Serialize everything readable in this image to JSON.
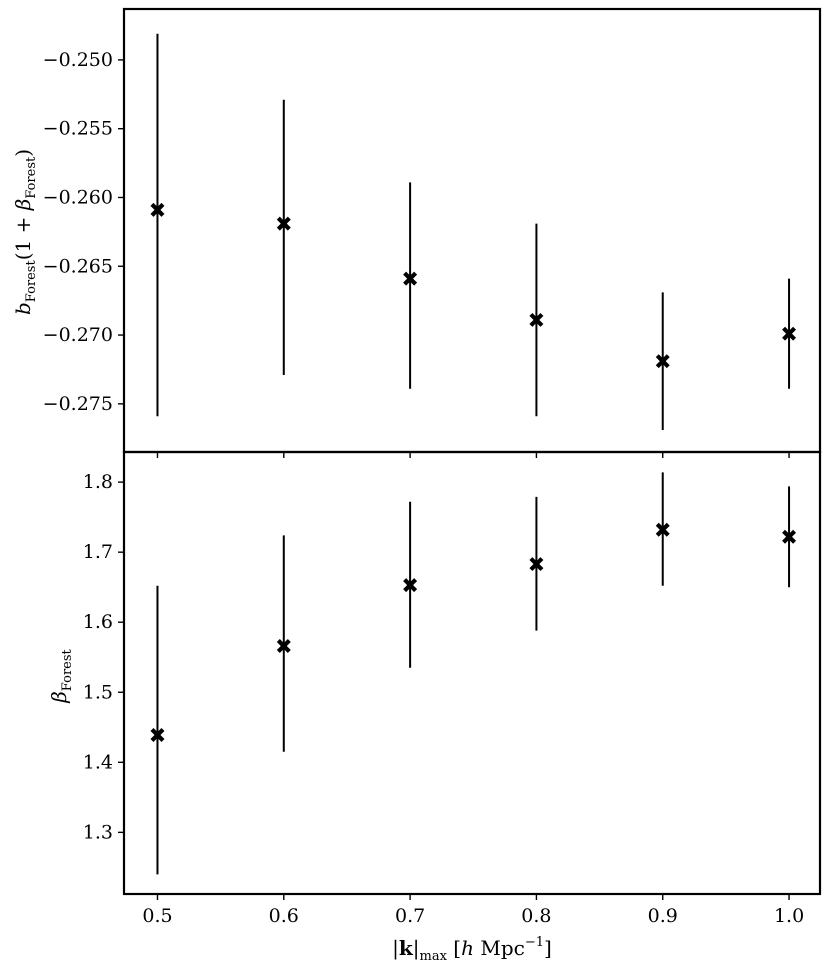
{
  "chart_data": [
    {
      "type": "scatter",
      "panel": "top",
      "ylabel": "b_Forest(1 + β_Forest)",
      "ylabel_parts": {
        "main": "b",
        "sub": "Forest",
        "open": "(1 + ",
        "beta": "β",
        "sub2": "Forest",
        "close": ")"
      },
      "ylim": [
        -0.2785,
        -0.2463
      ],
      "yticks": [
        -0.25,
        -0.255,
        -0.26,
        -0.265,
        -0.27,
        -0.275
      ],
      "ytick_labels": [
        "−0.250",
        "−0.255",
        "−0.260",
        "−0.265",
        "−0.270",
        "−0.275"
      ],
      "x": [
        0.5,
        0.6,
        0.7,
        0.8,
        0.9,
        1.0
      ],
      "y": [
        -0.2609,
        -0.2619,
        -0.2659,
        -0.2689,
        -0.2719,
        -0.2699
      ],
      "yerr_low": [
        -0.2759,
        -0.2729,
        -0.2739,
        -0.2759,
        -0.2769,
        -0.2739
      ],
      "yerr_high": [
        -0.2481,
        -0.2529,
        -0.2589,
        -0.2619,
        -0.2669,
        -0.2659
      ],
      "marker": "X",
      "color": "#000000"
    },
    {
      "type": "scatter",
      "panel": "bottom",
      "ylabel": "β_Forest",
      "ylabel_parts": {
        "beta": "β",
        "sub": "Forest"
      },
      "ylim": [
        1.212,
        1.843
      ],
      "yticks": [
        1.3,
        1.4,
        1.5,
        1.6,
        1.7,
        1.8
      ],
      "ytick_labels": [
        "1.3",
        "1.4",
        "1.5",
        "1.6",
        "1.7",
        "1.8"
      ],
      "x": [
        0.5,
        0.6,
        0.7,
        0.8,
        0.9,
        1.0
      ],
      "y": [
        1.439,
        1.566,
        1.653,
        1.683,
        1.732,
        1.722
      ],
      "yerr_low": [
        1.24,
        1.415,
        1.535,
        1.588,
        1.652,
        1.65
      ],
      "yerr_high": [
        1.652,
        1.724,
        1.772,
        1.779,
        1.814,
        1.794
      ],
      "marker": "X",
      "color": "#000000"
    }
  ],
  "x_axis": {
    "xlabel": "|k|max [h Mpc^−1]",
    "xlabel_parts": {
      "bar1": "|",
      "k": "k",
      "bar2": "|",
      "sub": "max",
      "open": " [",
      "h": "h",
      "unit": " Mpc",
      "sup": "−1",
      "close": "]"
    },
    "xlim": [
      0.4735,
      1.0245
    ],
    "xticks": [
      0.5,
      0.6,
      0.7,
      0.8,
      0.9,
      1.0
    ],
    "xtick_labels": [
      "0.5",
      "0.6",
      "0.7",
      "0.8",
      "0.9",
      "1.0"
    ]
  }
}
